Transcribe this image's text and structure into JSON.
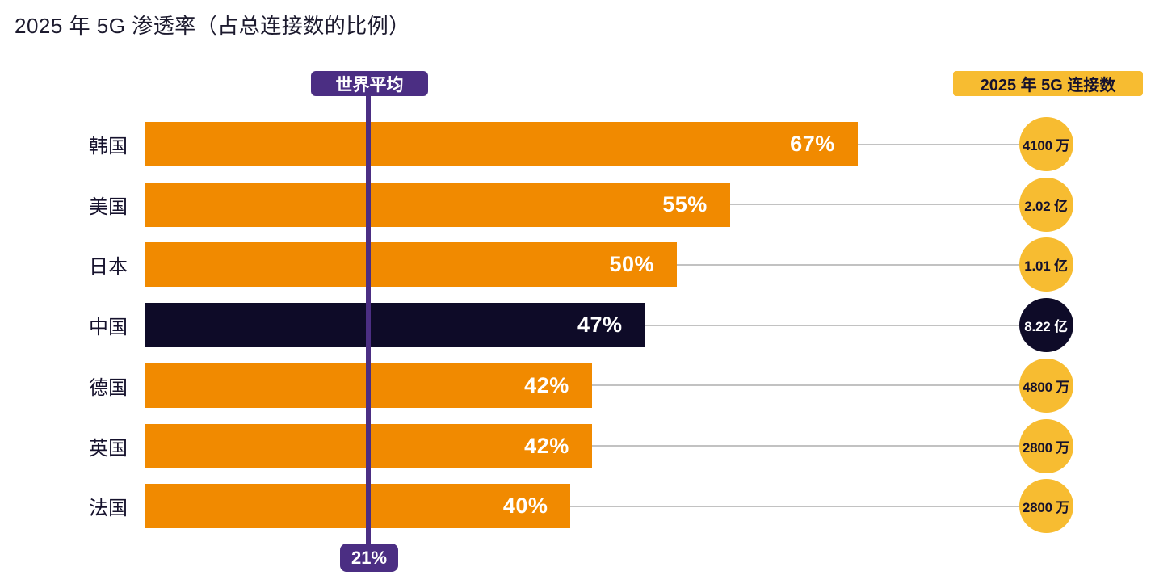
{
  "chart_data": {
    "type": "bar",
    "orientation": "horizontal",
    "title": "2025 年 5G 渗透率（占总连接数的比例）",
    "xlabel": "",
    "ylabel": "",
    "unit": "%",
    "xlim": [
      0,
      70
    ],
    "grid": false,
    "categories": [
      "韩国",
      "美国",
      "日本",
      "中国",
      "德国",
      "英国",
      "法国"
    ],
    "values": [
      67,
      55,
      50,
      47,
      42,
      42,
      40
    ],
    "value_labels": [
      "67%",
      "55%",
      "50%",
      "47%",
      "42%",
      "42%",
      "40%"
    ],
    "highlight_index": 3,
    "series": [
      {
        "name": "2025 年 5G 渗透率",
        "values": [
          67,
          55,
          50,
          47,
          42,
          42,
          40
        ]
      },
      {
        "name": "2025 年 5G 连接数",
        "values_text": [
          "4100 万",
          "2.02 亿",
          "1.01 亿",
          "8.22 亿",
          "4800 万",
          "2800 万",
          "2800 万"
        ]
      }
    ],
    "connections_header": "2025 年 5G 连接数",
    "world_average": {
      "label": "世界平均",
      "value": 21,
      "value_label": "21%"
    }
  },
  "colors": {
    "bar_orange": "#F18A00",
    "bar_highlight_navy": "#0E0B28",
    "circle_yellow": "#F7BC31",
    "circle_highlight_navy": "#0E0B28",
    "purple": "#4B2E83",
    "text_dark": "#16122D",
    "text_white": "#FFFFFF",
    "connector_gray": "#C2C2C2"
  }
}
